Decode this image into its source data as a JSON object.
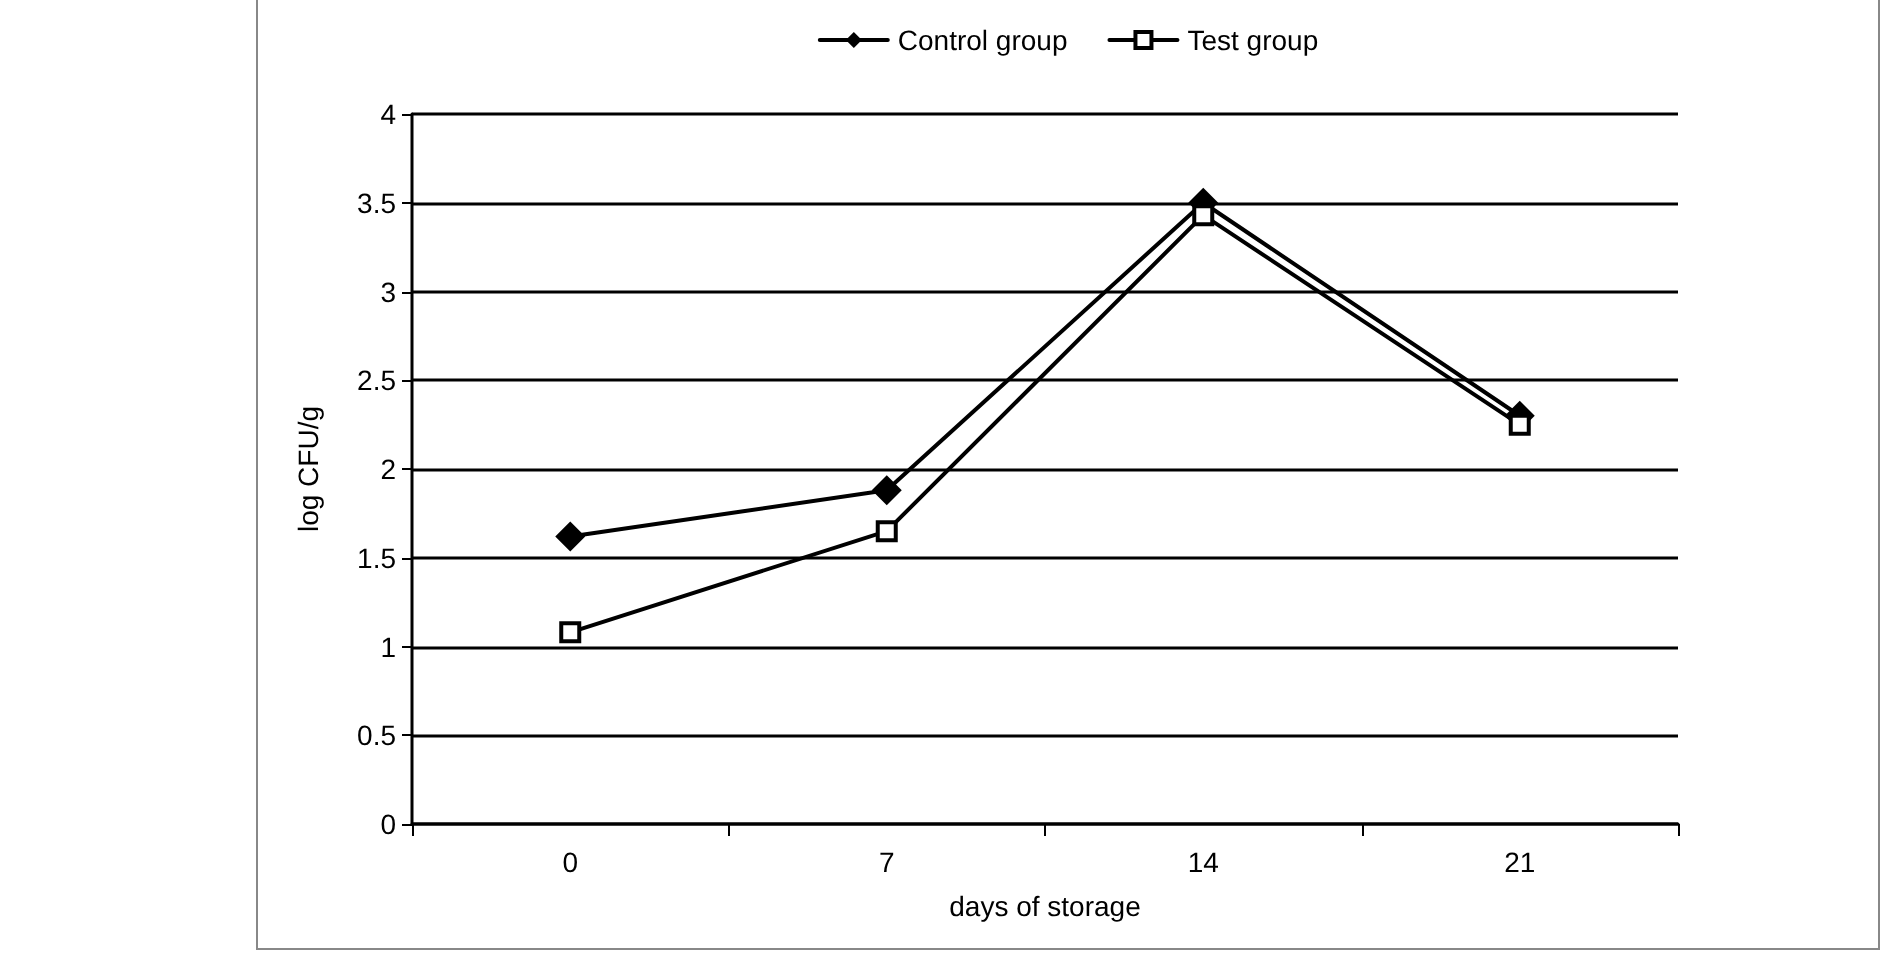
{
  "chart_data": {
    "type": "line",
    "xlabel": "days of storage",
    "ylabel": "log CFU/g",
    "categories": [
      "0",
      "7",
      "14",
      "21"
    ],
    "series": [
      {
        "name": "Control group",
        "color": "#000000",
        "marker": "diamond",
        "values": [
          1.62,
          1.88,
          3.5,
          2.3
        ]
      },
      {
        "name": "Test group",
        "color": "#000000",
        "marker": "square",
        "values": [
          1.08,
          1.65,
          3.43,
          2.25
        ]
      }
    ],
    "ylim": [
      0,
      4
    ],
    "yticks": [
      0,
      0.5,
      1,
      1.5,
      2,
      2.5,
      3,
      3.5,
      4
    ],
    "grid": "y",
    "legend": "top",
    "line_style": "solid"
  }
}
